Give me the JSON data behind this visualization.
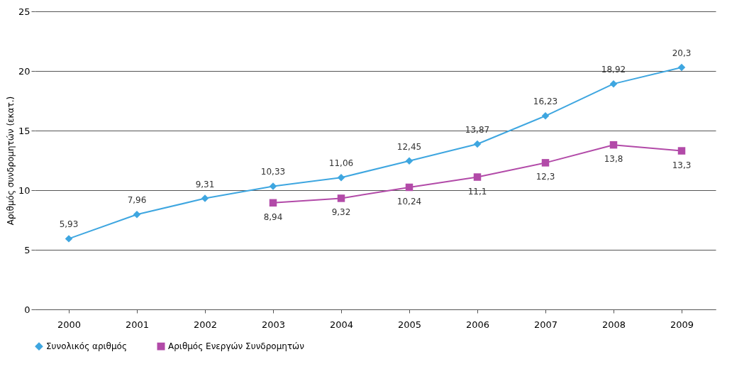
{
  "chart_data": {
    "type": "line",
    "ylabel": "Αριθμός συνδρομητών (εκατ.)",
    "categories": [
      "2000",
      "2001",
      "2002",
      "2003",
      "2004",
      "2005",
      "2006",
      "2007",
      "2008",
      "2009"
    ],
    "series": [
      {
        "name": "Συνολικός αριθμός",
        "color": "#3ea6e0",
        "marker": "diamond",
        "values": [
          5.93,
          7.96,
          9.31,
          10.33,
          11.06,
          12.45,
          13.87,
          16.23,
          18.92,
          20.3
        ],
        "value_labels": [
          "5,93",
          "7,96",
          "9,31",
          "10,33",
          "11,06",
          "12,45",
          "13,87",
          "16,23",
          "18,92",
          "20,3"
        ]
      },
      {
        "name": "Αριθμός Ενεργών Συνδρομητών",
        "color": "#b24aa8",
        "marker": "square",
        "values": [
          null,
          null,
          null,
          8.94,
          9.32,
          10.24,
          11.1,
          12.3,
          13.8,
          13.3
        ],
        "value_labels": [
          null,
          null,
          null,
          "8,94",
          "9,32",
          "10,24",
          "11,1",
          "12,3",
          "13,8",
          "13,3"
        ]
      }
    ],
    "ylim": [
      0,
      25
    ],
    "yticks": [
      0,
      5,
      10,
      15,
      20,
      25
    ],
    "grid": "y",
    "legend": "bottom",
    "line_style": "solid"
  }
}
